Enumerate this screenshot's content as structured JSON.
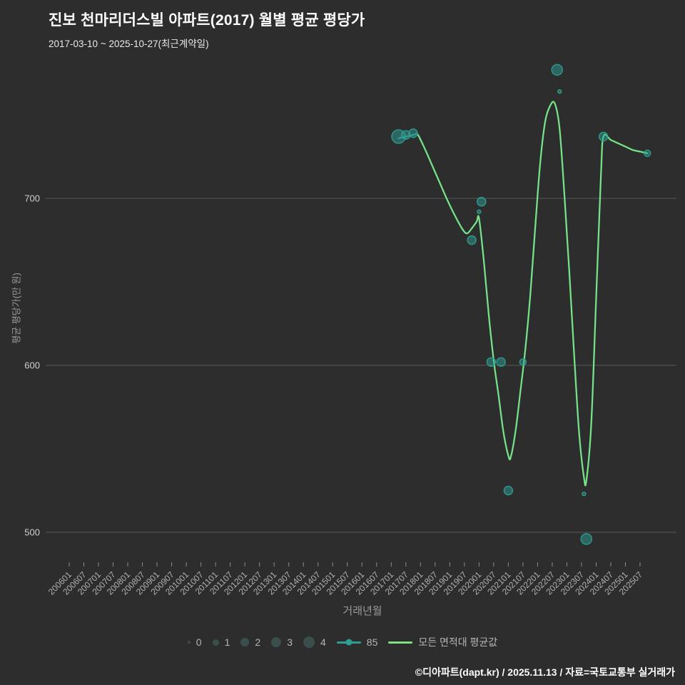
{
  "header": {
    "title": "진보 천마리더스빌 아파트(2017) 월별 평균 평당가",
    "subtitle": "2017-03-10 ~ 2025-10-27(최근계약일)"
  },
  "footer": {
    "credit": "©디아파트(dapt.kr) / 2025.11.13 / 자료=국토교통부 실거래가"
  },
  "chart_data": {
    "type": "line+scatter",
    "title": "진보 천마리더스빌 아파트(2017) 월별 평균 평당가",
    "subtitle": "2017-03-10 ~ 2025-10-27(최근계약일)",
    "xlabel": "거래년월",
    "ylabel": "평균 평당가(만 원)",
    "y_ticks": [
      700,
      600,
      500
    ],
    "ylim": [
      481,
      783
    ],
    "grid": "horizontal-only",
    "legend_position": "bottom-center",
    "x_ticks": [
      "200601",
      "200607",
      "200701",
      "200707",
      "200801",
      "200807",
      "200901",
      "200907",
      "201001",
      "201007",
      "201101",
      "201107",
      "201201",
      "201207",
      "201301",
      "201307",
      "201401",
      "201407",
      "201501",
      "201507",
      "201601",
      "201607",
      "201701",
      "201707",
      "201801",
      "201807",
      "201901",
      "201907",
      "202001",
      "202007",
      "202101",
      "202107",
      "202201",
      "202207",
      "202301",
      "202307",
      "202401",
      "202407",
      "202501",
      "202507"
    ],
    "colors": {
      "background": "#2d2d2d",
      "grid": "#585858",
      "series_85": "#2e9e93",
      "line_avg": "#7ee37e",
      "tick_label": "#b0b0b0",
      "y_tick_label": "#cfcfcf",
      "legend_size_dot": "#3a4f4c"
    },
    "legend": {
      "sizes": [
        "0",
        "1",
        "2",
        "3",
        "4"
      ],
      "series": [
        {
          "name": "85"
        },
        {
          "name": "모든 면적대 평균값"
        }
      ]
    },
    "series": [
      {
        "name": "85",
        "type": "scatter",
        "color": "#2e9e93",
        "points": [
          {
            "x": "201704",
            "y": 737,
            "count": 4
          },
          {
            "x": "201707",
            "y": 738,
            "count": 2
          },
          {
            "x": "201710",
            "y": 739,
            "count": 2
          },
          {
            "x": "201910",
            "y": 675,
            "count": 2
          },
          {
            "x": "202001",
            "y": 692,
            "count": 0
          },
          {
            "x": "202002",
            "y": 698,
            "count": 2
          },
          {
            "x": "202006",
            "y": 602,
            "count": 2
          },
          {
            "x": "202010",
            "y": 602,
            "count": 2
          },
          {
            "x": "202101",
            "y": 525,
            "count": 2
          },
          {
            "x": "202107",
            "y": 602,
            "count": 1
          },
          {
            "x": "202209",
            "y": 777,
            "count": 3
          },
          {
            "x": "202210",
            "y": 764,
            "count": 0
          },
          {
            "x": "202308",
            "y": 523,
            "count": 0
          },
          {
            "x": "202309",
            "y": 496,
            "count": 3
          },
          {
            "x": "202404",
            "y": 737,
            "count": 2
          },
          {
            "x": "202510",
            "y": 727,
            "count": 1
          }
        ]
      },
      {
        "name": "모든 면적대 평균값",
        "type": "line",
        "color": "#7ee37e",
        "points": [
          [
            "201704",
            736
          ],
          [
            "201707",
            737
          ],
          [
            "201710",
            738
          ],
          [
            "201712",
            738
          ],
          [
            "201803",
            729
          ],
          [
            "201806",
            719
          ],
          [
            "201809",
            709
          ],
          [
            "201812",
            699
          ],
          [
            "201903",
            690
          ],
          [
            "201906",
            682
          ],
          [
            "201908",
            679
          ],
          [
            "201910",
            682
          ],
          [
            "201912",
            686
          ],
          [
            "202001",
            688
          ],
          [
            "202003",
            662
          ],
          [
            "202005",
            630
          ],
          [
            "202007",
            603
          ],
          [
            "202009",
            582
          ],
          [
            "202011",
            560
          ],
          [
            "202101",
            546
          ],
          [
            "202102",
            545
          ],
          [
            "202104",
            561
          ],
          [
            "202106",
            585
          ],
          [
            "202108",
            610
          ],
          [
            "202110",
            642
          ],
          [
            "202112",
            682
          ],
          [
            "202202",
            720
          ],
          [
            "202204",
            745
          ],
          [
            "202206",
            755
          ],
          [
            "202208",
            757
          ],
          [
            "202210",
            742
          ],
          [
            "202212",
            702
          ],
          [
            "202302",
            656
          ],
          [
            "202304",
            606
          ],
          [
            "202306",
            560
          ],
          [
            "202308",
            533
          ],
          [
            "202309",
            531
          ],
          [
            "202311",
            565
          ],
          [
            "202401",
            640
          ],
          [
            "202403",
            715
          ],
          [
            "202404",
            737
          ],
          [
            "202407",
            735
          ],
          [
            "202410",
            733
          ],
          [
            "202501",
            731
          ],
          [
            "202504",
            729
          ],
          [
            "202507",
            728
          ],
          [
            "202510",
            727
          ]
        ]
      }
    ]
  }
}
